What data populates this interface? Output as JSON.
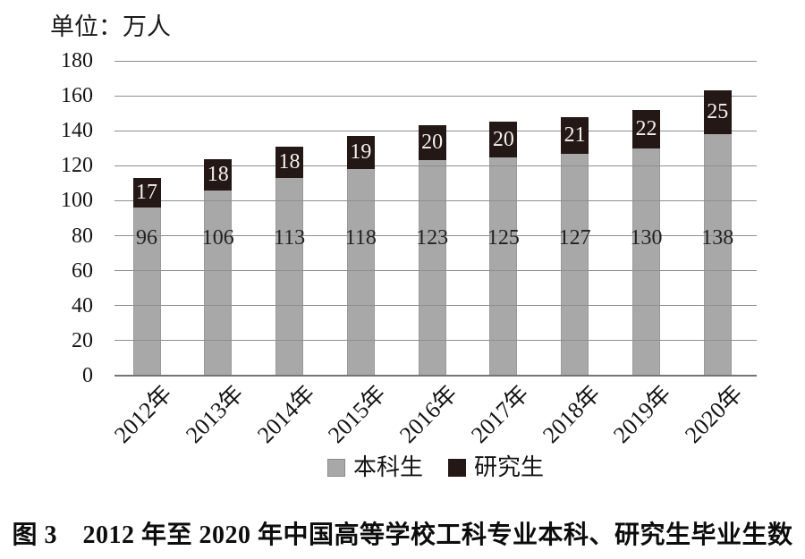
{
  "chart_data": {
    "type": "bar",
    "stacked": true,
    "unit_label": "单位：万人",
    "caption": "图 3　2012 年至 2020 年中国高等学校工科专业本科、研究生毕业生数",
    "categories": [
      "2012年",
      "2013年",
      "2014年",
      "2015年",
      "2016年",
      "2017年",
      "2018年",
      "2019年",
      "2020年"
    ],
    "series": [
      {
        "name": "本科生",
        "color": "#a8a8a8",
        "label_color": "#222222",
        "values": [
          96,
          106,
          113,
          118,
          123,
          125,
          127,
          130,
          138
        ]
      },
      {
        "name": "研究生",
        "color": "#231815",
        "label_color": "#f4f0ec",
        "values": [
          17,
          18,
          18,
          19,
          20,
          20,
          21,
          22,
          25
        ]
      }
    ],
    "ylim": [
      0,
      180
    ],
    "y_ticks": [
      0,
      20,
      40,
      60,
      80,
      100,
      120,
      140,
      160,
      180
    ],
    "grid": true,
    "legend_position": "bottom",
    "x_label_rotation": 45
  }
}
